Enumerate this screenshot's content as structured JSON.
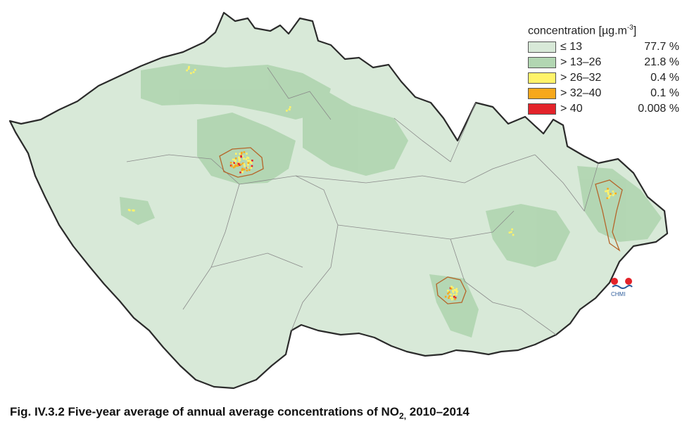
{
  "legend": {
    "title": "concentration [µg.m",
    "title_sup": "-3",
    "title_close": "]",
    "items": [
      {
        "label": "≤ 13",
        "percent": "77.7 %",
        "color": "#d8e9d8"
      },
      {
        "label": "> 13–26",
        "percent": "21.8 %",
        "color": "#b2d6b2"
      },
      {
        "label": "> 26–32",
        "percent": "0.4 %",
        "color": "#fff36a"
      },
      {
        "label": "> 32–40",
        "percent": "0.1 %",
        "color": "#f7a81c"
      },
      {
        "label": "> 40",
        "percent": "0.008 %",
        "color": "#e3232a"
      }
    ]
  },
  "logo": {
    "text": "CHMI"
  },
  "caption": {
    "prefix": "Fig. IV.3.2  Five-year average of annual average concentrations of NO",
    "subscript": "2,",
    "suffix": " 2010–2014"
  }
}
